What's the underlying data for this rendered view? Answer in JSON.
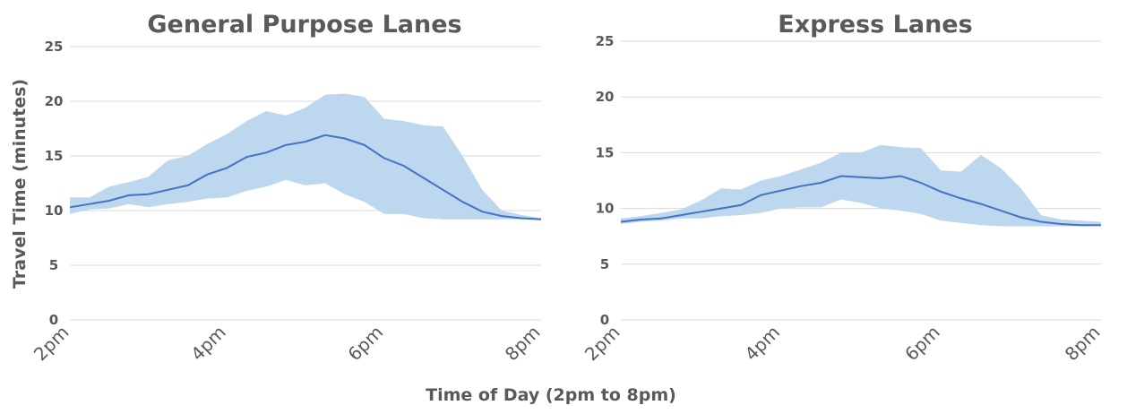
{
  "x_axis_title": "Time of Day (2pm to 8pm)",
  "y_axis_title": "Travel Time (minutes)",
  "colors": {
    "band": "#bdd7ee",
    "line": "#4472c4",
    "text": "#595959",
    "grid": "#d9d9d9"
  },
  "chart_data": [
    {
      "type": "area",
      "title": "General Purpose Lanes",
      "ylim": [
        0,
        25
      ],
      "yticks": [
        "0",
        "5",
        "10",
        "15",
        "20",
        "25"
      ],
      "xticks": [
        "2pm",
        "4pm",
        "6pm",
        "8pm"
      ],
      "grid": true,
      "x_hours": [
        14.0,
        14.25,
        14.5,
        14.75,
        15.0,
        15.25,
        15.5,
        15.75,
        16.0,
        16.25,
        16.5,
        16.75,
        17.0,
        17.25,
        17.5,
        17.75,
        18.0,
        18.25,
        18.5,
        18.75,
        19.0,
        19.25,
        19.5,
        19.75,
        20.0
      ],
      "series": [
        {
          "values": [
            10.3,
            10.6,
            10.9,
            11.4,
            11.5,
            11.9,
            12.3,
            13.3,
            13.9,
            14.9,
            15.3,
            16.0,
            16.3,
            16.9,
            16.6,
            16.0,
            14.8,
            14.1,
            13.0,
            11.9,
            10.8,
            9.9,
            9.5,
            9.3,
            9.2
          ]
        }
      ],
      "band_upper": [
        11.2,
        11.2,
        12.2,
        12.6,
        13.1,
        14.6,
        15.0,
        16.1,
        17.0,
        18.2,
        19.1,
        18.7,
        19.4,
        20.6,
        20.7,
        20.4,
        18.4,
        18.2,
        17.8,
        17.7,
        15.0,
        11.9,
        10.0,
        9.6,
        9.3
      ],
      "band_lower": [
        9.7,
        10.1,
        10.2,
        10.6,
        10.3,
        10.6,
        10.8,
        11.1,
        11.2,
        11.8,
        12.2,
        12.8,
        12.3,
        12.5,
        11.5,
        10.8,
        9.7,
        9.7,
        9.3,
        9.2,
        9.2,
        9.2,
        9.2,
        9.2,
        9.2
      ]
    },
    {
      "type": "area",
      "title": "Express Lanes",
      "ylim": [
        0,
        25
      ],
      "yticks": [
        "0",
        "5",
        "10",
        "15",
        "20",
        "25"
      ],
      "xticks": [
        "2pm",
        "4pm",
        "6pm",
        "8pm"
      ],
      "grid": true,
      "x_hours": [
        14.0,
        14.25,
        14.5,
        14.75,
        15.0,
        15.25,
        15.5,
        15.75,
        16.0,
        16.25,
        16.5,
        16.75,
        17.0,
        17.25,
        17.5,
        17.75,
        18.0,
        18.25,
        18.5,
        18.75,
        19.0,
        19.25,
        19.5,
        19.75,
        20.0
      ],
      "series": [
        {
          "values": [
            8.8,
            9.0,
            9.1,
            9.4,
            9.7,
            10.0,
            10.3,
            11.2,
            11.6,
            12.0,
            12.3,
            12.9,
            12.8,
            12.7,
            12.9,
            12.3,
            11.5,
            10.9,
            10.4,
            9.8,
            9.2,
            8.8,
            8.6,
            8.5,
            8.5
          ]
        }
      ],
      "band_upper": [
        9.1,
        9.3,
        9.6,
        9.9,
        10.7,
        11.8,
        11.7,
        12.5,
        12.9,
        13.5,
        14.1,
        15.0,
        15.0,
        15.7,
        15.5,
        15.4,
        13.4,
        13.3,
        14.8,
        13.6,
        11.8,
        9.4,
        9.0,
        8.9,
        8.8
      ],
      "band_lower": [
        8.6,
        8.8,
        8.9,
        9.1,
        9.1,
        9.3,
        9.4,
        9.6,
        10.0,
        10.1,
        10.1,
        10.8,
        10.5,
        10.0,
        9.8,
        9.5,
        8.9,
        8.7,
        8.5,
        8.4,
        8.4,
        8.4,
        8.4,
        8.4,
        8.4
      ]
    }
  ]
}
